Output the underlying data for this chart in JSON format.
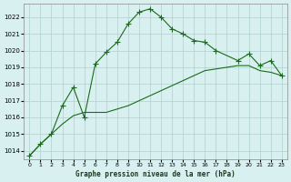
{
  "x_line1": [
    0,
    1,
    2,
    3,
    4,
    5,
    6,
    7,
    8,
    9,
    10,
    11,
    12,
    13,
    14,
    15,
    16,
    17,
    19,
    20,
    21,
    22,
    23
  ],
  "y_line1": [
    1013.7,
    1014.4,
    1015.0,
    1016.7,
    1017.8,
    1016.0,
    1019.2,
    1019.9,
    1020.5,
    1021.6,
    1022.3,
    1022.5,
    1022.0,
    1021.3,
    1021.0,
    1020.6,
    1020.5,
    1020.0,
    1019.4,
    1019.8,
    1019.1,
    1019.4,
    1018.5
  ],
  "x_line2": [
    0,
    1,
    2,
    3,
    4,
    5,
    6,
    7,
    8,
    9,
    10,
    11,
    12,
    13,
    14,
    15,
    16,
    17,
    18,
    19,
    20,
    21,
    22,
    23
  ],
  "y_line2": [
    1013.7,
    1014.4,
    1015.0,
    1015.6,
    1016.1,
    1016.3,
    1016.3,
    1016.3,
    1016.5,
    1016.7,
    1017.0,
    1017.3,
    1017.6,
    1017.9,
    1018.2,
    1018.5,
    1018.8,
    1018.9,
    1019.0,
    1019.1,
    1019.1,
    1018.8,
    1018.7,
    1018.5
  ],
  "line_color": "#1a6b1a",
  "bg_color": "#d8f0f0",
  "grid_color": "#b0d0d0",
  "xlabel": "Graphe pression niveau de la mer (hPa)",
  "ylim": [
    1013.5,
    1022.8
  ],
  "xlim": [
    -0.5,
    23.5
  ],
  "yticks": [
    1014,
    1015,
    1016,
    1017,
    1018,
    1019,
    1020,
    1021,
    1022
  ],
  "xticks": [
    0,
    1,
    2,
    3,
    4,
    5,
    6,
    7,
    8,
    9,
    10,
    11,
    12,
    13,
    14,
    15,
    16,
    17,
    18,
    19,
    20,
    21,
    22,
    23
  ]
}
